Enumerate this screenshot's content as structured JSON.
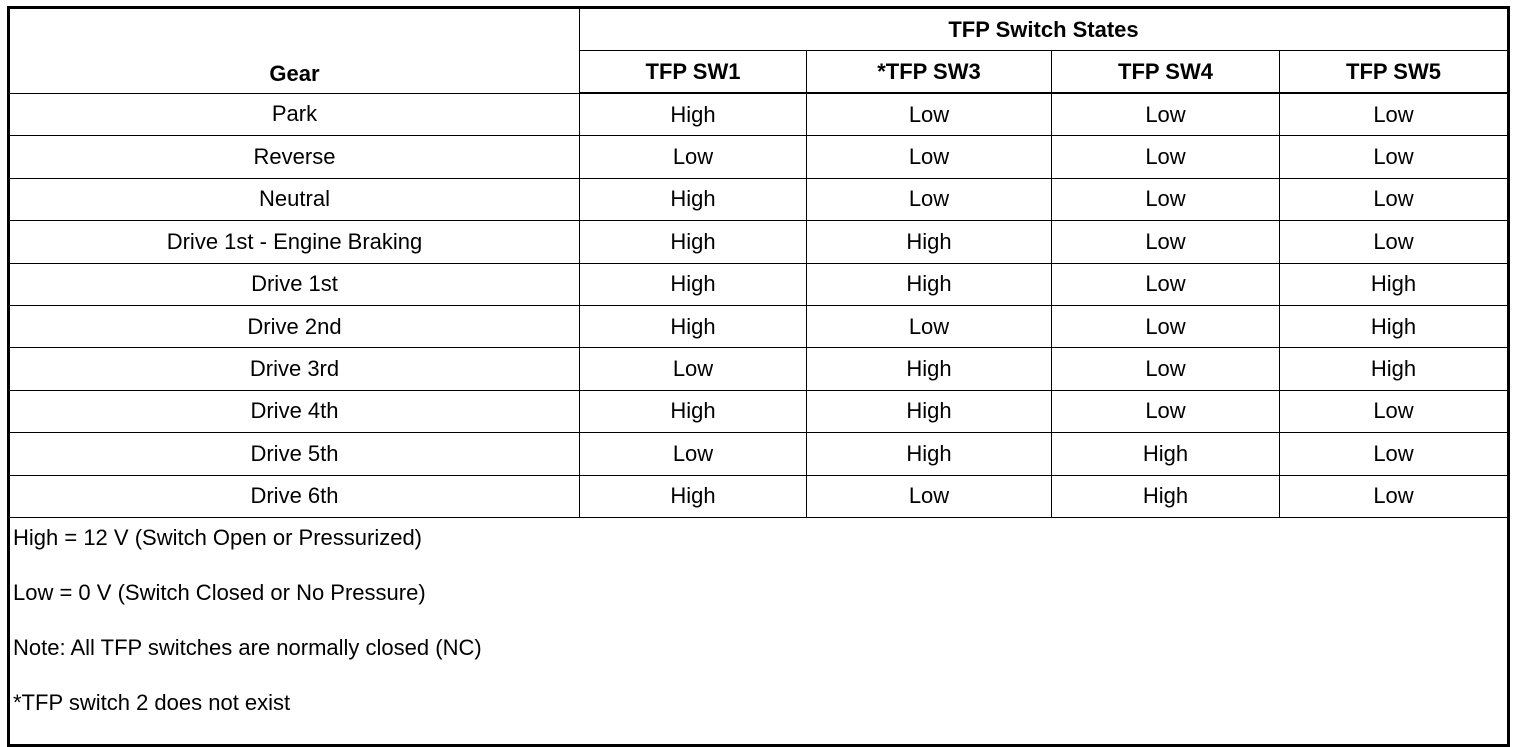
{
  "table": {
    "group_header": "TFP Switch States",
    "columns": [
      "Gear",
      "TFP SW1",
      "*TFP SW3",
      "TFP SW4",
      "TFP SW5"
    ],
    "rows": [
      [
        "Park",
        "High",
        "Low",
        "Low",
        "Low"
      ],
      [
        "Reverse",
        "Low",
        "Low",
        "Low",
        "Low"
      ],
      [
        "Neutral",
        "High",
        "Low",
        "Low",
        "Low"
      ],
      [
        "Drive 1st - Engine Braking",
        "High",
        "High",
        "Low",
        "Low"
      ],
      [
        "Drive 1st",
        "High",
        "High",
        "Low",
        "High"
      ],
      [
        "Drive 2nd",
        "High",
        "Low",
        "Low",
        "High"
      ],
      [
        "Drive 3rd",
        "Low",
        "High",
        "Low",
        "High"
      ],
      [
        "Drive 4th",
        "High",
        "High",
        "Low",
        "Low"
      ],
      [
        "Drive 5th",
        "Low",
        "High",
        "High",
        "Low"
      ],
      [
        "Drive 6th",
        "High",
        "Low",
        "High",
        "Low"
      ]
    ],
    "notes": [
      "High = 12 V (Switch Open or Pressurized)",
      "Low = 0 V (Switch Closed or No Pressure)",
      "Note: All TFP switches are normally closed (NC)",
      "*TFP switch 2 does not exist"
    ]
  }
}
